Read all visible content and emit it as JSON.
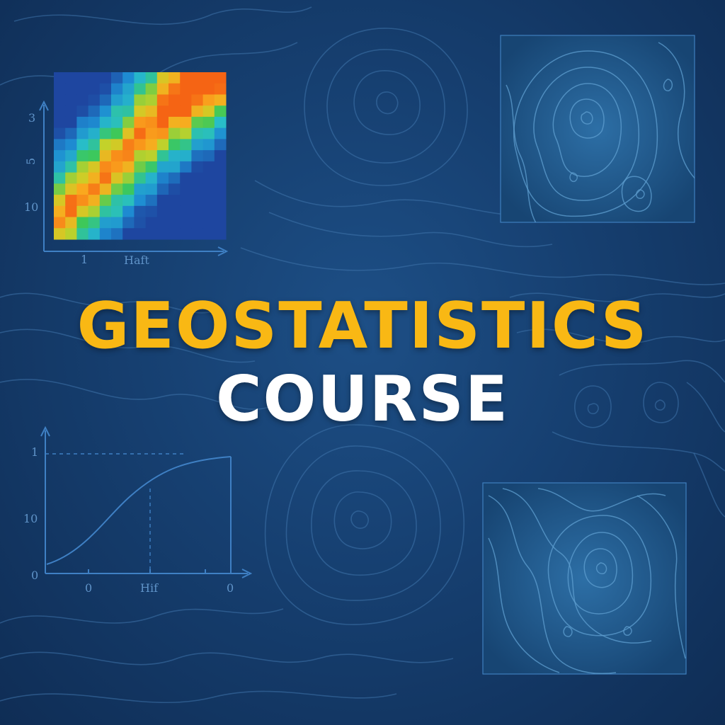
{
  "title": {
    "line1": "GEOSTATISTICS",
    "line2": "COURSE"
  },
  "colors": {
    "title_primary": "#f9b814",
    "title_secondary": "#ffffff",
    "background": "#163f70",
    "contour": "#3f74ab",
    "axis": "#3f80c4"
  },
  "heatmap": {
    "ylabels": [
      "3",
      "5",
      "10"
    ],
    "xlabel": "Haft",
    "xtick": "1"
  },
  "variogram": {
    "ylabels": [
      "1",
      "10",
      "0"
    ],
    "xlabels": [
      "0",
      "Hif",
      "0"
    ]
  },
  "icons": [
    "contour-map-icon",
    "heatmap-icon",
    "variogram-curve-icon"
  ]
}
